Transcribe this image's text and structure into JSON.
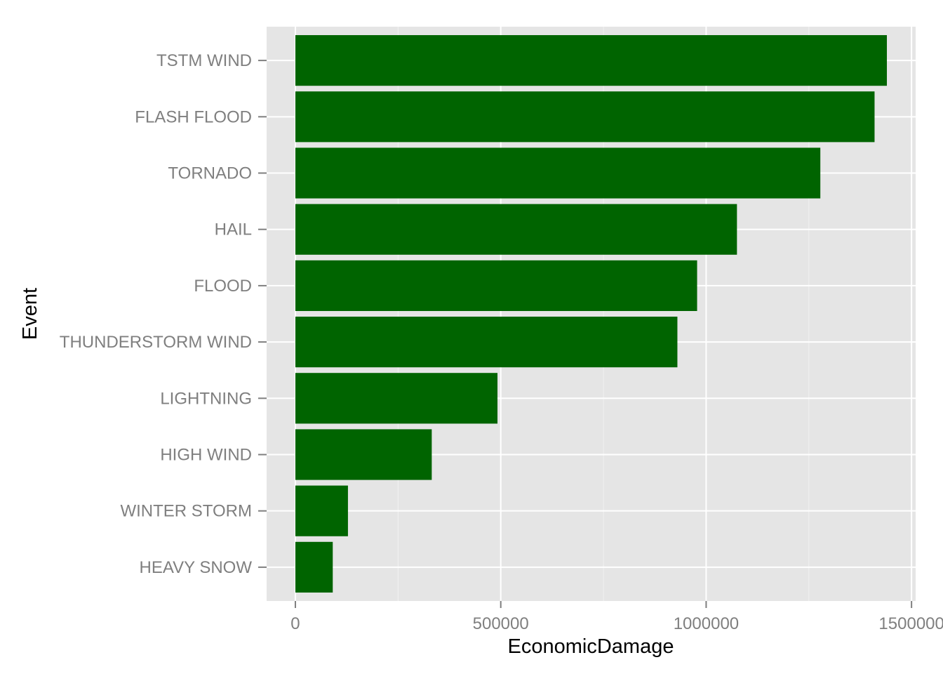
{
  "chart_data": {
    "type": "bar",
    "orientation": "horizontal",
    "categories": [
      "TSTM WIND",
      "FLASH FLOOD",
      "TORNADO",
      "HAIL",
      "FLOOD",
      "THUNDERSTORM WIND",
      "LIGHTNING",
      "HIGH WIND",
      "WINTER STORM",
      "HEAVY SNOW"
    ],
    "values": [
      1440000,
      1410000,
      1278000,
      1075000,
      978000,
      930000,
      492000,
      332000,
      128000,
      91000
    ],
    "xlabel": "EconomicDamage",
    "ylabel": "Event",
    "xlim": [
      -70000,
      1510000
    ],
    "xticks": [
      0,
      500000,
      1000000,
      1500000
    ],
    "xtick_labels": [
      "0",
      "500000",
      "1000000",
      "1500000"
    ],
    "grid": true,
    "bar_color": "#006400",
    "panel_color": "#e5e5e5",
    "grid_color": "#ffffff"
  }
}
